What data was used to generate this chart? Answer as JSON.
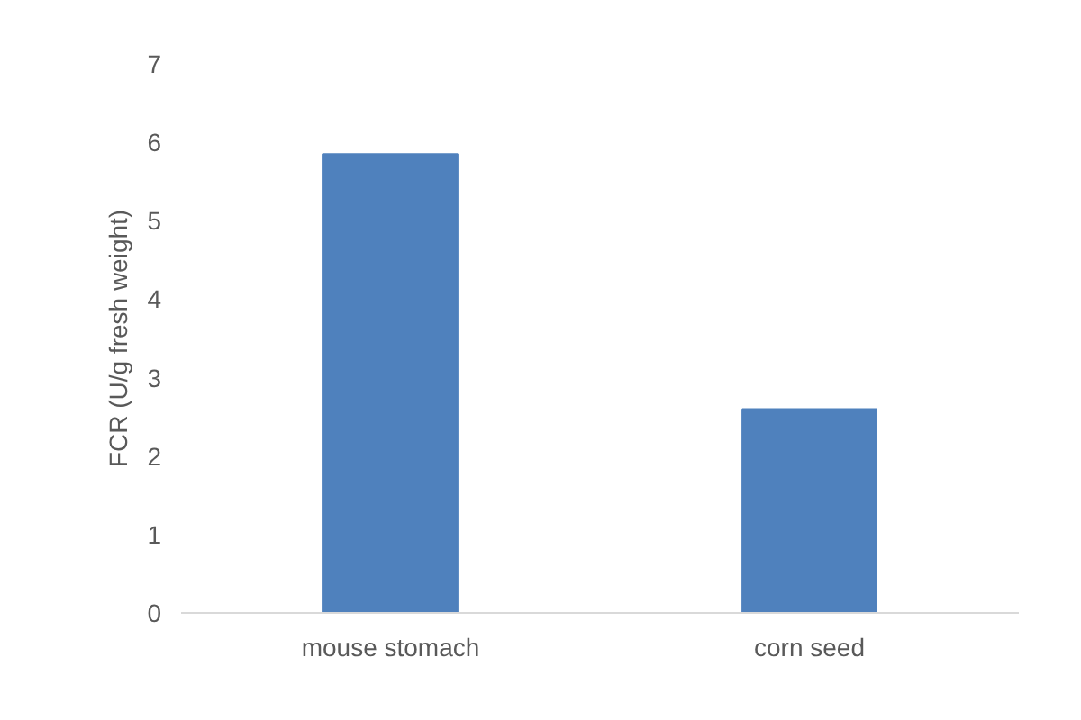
{
  "chart_data": {
    "type": "bar",
    "ylabel": "FCR (U/g fresh weight)",
    "categories": [
      "mouse stomach",
      "corn seed"
    ],
    "values": [
      5.85,
      2.6
    ],
    "color": "#4f81bd",
    "ylim": [
      0,
      7
    ],
    "yticks": [
      0,
      1,
      2,
      3,
      4,
      5,
      6,
      7
    ],
    "grid": false
  }
}
